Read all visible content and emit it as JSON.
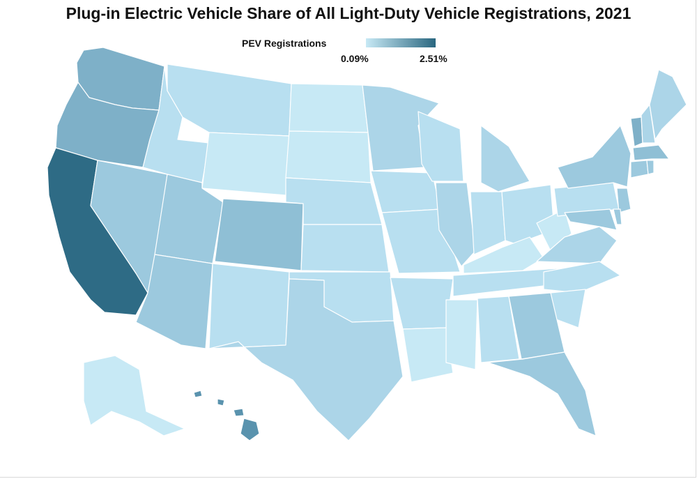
{
  "title": "Plug-in Electric Vehicle Share of All Light-Duty Vehicle Registrations, 2021",
  "legend": {
    "label": "PEV Registrations",
    "min_label": "0.09%",
    "max_label": "2.51%",
    "min_color": "#c7e9f5",
    "max_color": "#2a6780"
  },
  "shade_levels": {
    "very_light": "#c7e9f5",
    "light": "#b8dff0",
    "light_mid": "#acd5e8",
    "mid": "#9cc9de",
    "mid_dark": "#8fbfd5",
    "dark": "#7eb0c8",
    "hawaii": "#5a93ae",
    "california": "#2e6b85"
  }
}
